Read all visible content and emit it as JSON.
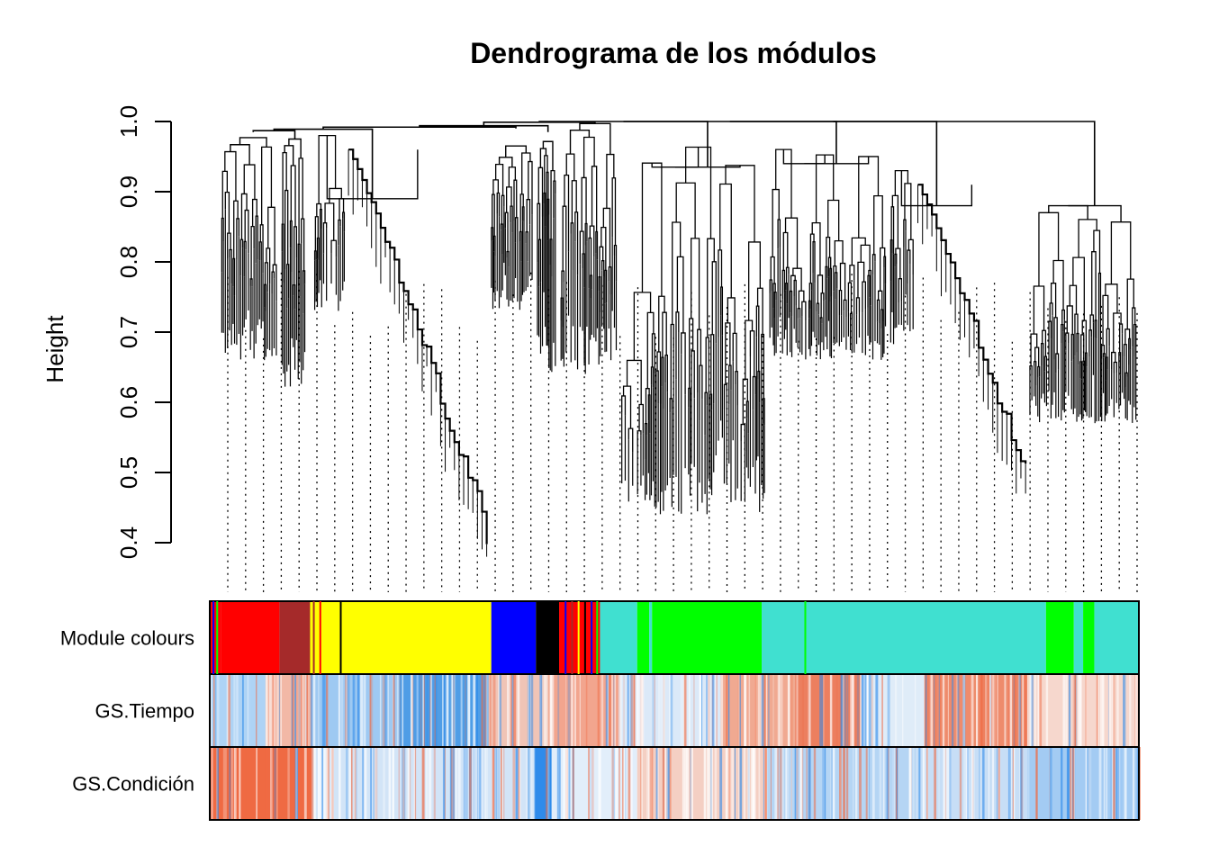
{
  "chart_data": {
    "type": "dendrogram",
    "title": "Dendrograma de los módulos",
    "ylabel": "Height",
    "xlabel": "",
    "ylim": [
      0.4,
      1.0
    ],
    "yticks": [
      0.4,
      0.5,
      0.6,
      0.7,
      0.8,
      0.9,
      1.0
    ],
    "ytick_labels": [
      "0.4",
      "0.5",
      "0.6",
      "0.7",
      "0.8",
      "0.9",
      "1.0"
    ],
    "branches": [
      {
        "name": "red-branch",
        "leaf_range": [
          0.01,
          0.075
        ],
        "merge_height": 0.985,
        "min_height": 0.66,
        "top_height": 0.97
      },
      {
        "name": "brown-branch",
        "leaf_range": [
          0.075,
          0.105
        ],
        "merge_height": 0.975,
        "min_height": 0.62,
        "top_height": 0.96
      },
      {
        "name": "yellow-branch",
        "leaf_range": [
          0.11,
          0.3
        ],
        "merge_height": 0.89,
        "min_height": 0.38,
        "top_height": 0.98
      },
      {
        "name": "blue-branch",
        "leaf_range": [
          0.3,
          0.35
        ],
        "merge_height": 0.99,
        "min_height": 0.73,
        "top_height": 0.97
      },
      {
        "name": "black-branch",
        "leaf_range": [
          0.35,
          0.375
        ],
        "merge_height": 0.985,
        "min_height": 0.64,
        "top_height": 0.96
      },
      {
        "name": "mixed-branch",
        "leaf_range": [
          0.375,
          0.44
        ],
        "merge_height": 0.997,
        "min_height": 0.64,
        "top_height": 0.99
      },
      {
        "name": "green-branch",
        "leaf_range": [
          0.44,
          0.6
        ],
        "merge_height": 0.935,
        "min_height": 0.44,
        "top_height": 0.97
      },
      {
        "name": "turquoise-branch-1",
        "leaf_range": [
          0.6,
          0.73
        ],
        "merge_height": 0.94,
        "min_height": 0.66,
        "top_height": 0.97
      },
      {
        "name": "turquoise-branch-2",
        "leaf_range": [
          0.73,
          0.88
        ],
        "merge_height": 0.88,
        "min_height": 0.47,
        "top_height": 0.93
      },
      {
        "name": "turquoise-branch-3",
        "leaf_range": [
          0.88,
          1.0
        ],
        "merge_height": 0.88,
        "min_height": 0.57,
        "top_height": 0.88
      }
    ],
    "color_rows": [
      {
        "label": "Module colours",
        "segments": [
          {
            "start": 0.0,
            "end": 0.012,
            "color": "#ff0000"
          },
          {
            "start": 0.012,
            "end": 0.075,
            "color": "#ff0000"
          },
          {
            "start": 0.075,
            "end": 0.108,
            "color": "#a52a2a"
          },
          {
            "start": 0.108,
            "end": 0.14,
            "color": "#ffff00"
          },
          {
            "start": 0.14,
            "end": 0.303,
            "color": "#ffff00"
          },
          {
            "start": 0.303,
            "end": 0.351,
            "color": "#0000ff"
          },
          {
            "start": 0.351,
            "end": 0.376,
            "color": "#000000"
          },
          {
            "start": 0.376,
            "end": 0.42,
            "color": "#ff0000"
          },
          {
            "start": 0.42,
            "end": 0.46,
            "color": "#40e0d0"
          },
          {
            "start": 0.46,
            "end": 0.473,
            "color": "#00ff00"
          },
          {
            "start": 0.473,
            "end": 0.476,
            "color": "#40e0d0"
          },
          {
            "start": 0.476,
            "end": 0.594,
            "color": "#00ff00"
          },
          {
            "start": 0.594,
            "end": 0.9,
            "color": "#40e0d0"
          },
          {
            "start": 0.9,
            "end": 0.93,
            "color": "#00ff00"
          },
          {
            "start": 0.93,
            "end": 0.94,
            "color": "#40e0d0"
          },
          {
            "start": 0.94,
            "end": 0.952,
            "color": "#00ff00"
          },
          {
            "start": 0.952,
            "end": 1.0,
            "color": "#40e0d0"
          }
        ]
      },
      {
        "label": "GS.Tiempo",
        "segments": [
          {
            "start": 0.0,
            "end": 0.06,
            "color": "#aed3f5"
          },
          {
            "start": 0.06,
            "end": 0.11,
            "color": "#f2b8a6"
          },
          {
            "start": 0.11,
            "end": 0.2,
            "color": "#9ec9f2"
          },
          {
            "start": 0.2,
            "end": 0.3,
            "color": "#4f9de6"
          },
          {
            "start": 0.3,
            "end": 0.37,
            "color": "#f0c4b6"
          },
          {
            "start": 0.37,
            "end": 0.44,
            "color": "#f2a58e"
          },
          {
            "start": 0.44,
            "end": 0.55,
            "color": "#dbe9f8"
          },
          {
            "start": 0.55,
            "end": 0.63,
            "color": "#f0a991"
          },
          {
            "start": 0.63,
            "end": 0.7,
            "color": "#ec7f5f"
          },
          {
            "start": 0.7,
            "end": 0.77,
            "color": "#dfecf8"
          },
          {
            "start": 0.77,
            "end": 0.88,
            "color": "#ee8b6c"
          },
          {
            "start": 0.88,
            "end": 1.0,
            "color": "#f6d7cd"
          }
        ]
      },
      {
        "label": "GS.Condición",
        "segments": [
          {
            "start": 0.0,
            "end": 0.11,
            "color": "#ef6a43"
          },
          {
            "start": 0.11,
            "end": 0.35,
            "color": "#d2e4f7"
          },
          {
            "start": 0.35,
            "end": 0.368,
            "color": "#2f8bea"
          },
          {
            "start": 0.368,
            "end": 0.46,
            "color": "#e2eefa"
          },
          {
            "start": 0.46,
            "end": 0.6,
            "color": "#f4cfc3"
          },
          {
            "start": 0.6,
            "end": 0.76,
            "color": "#b5d5f4"
          },
          {
            "start": 0.76,
            "end": 0.88,
            "color": "#c7def6"
          },
          {
            "start": 0.88,
            "end": 1.0,
            "color": "#a3cbf3"
          }
        ]
      }
    ],
    "colors": {
      "red": "#ff0000",
      "brown": "#a52a2a",
      "yellow": "#ffff00",
      "blue": "#0000ff",
      "black": "#000000",
      "green": "#00ff00",
      "turquoise": "#40e0d0",
      "positive": "#ef6a43",
      "negative": "#2f8bea"
    }
  }
}
